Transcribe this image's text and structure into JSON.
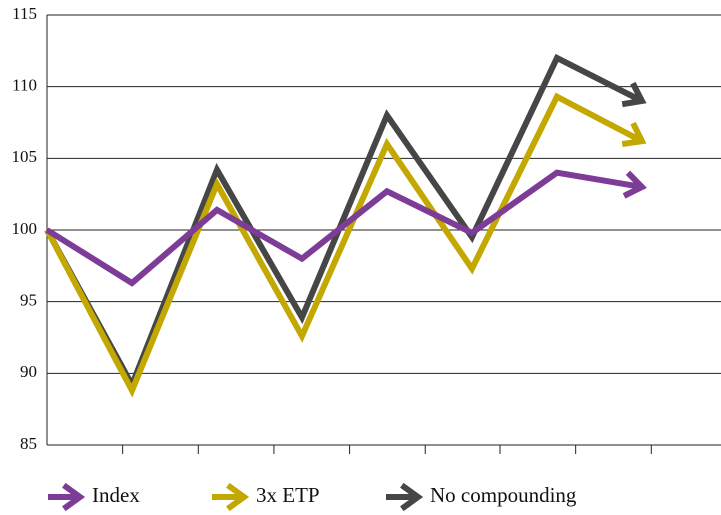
{
  "chart_data": {
    "type": "line",
    "x": [
      0,
      1,
      2,
      3,
      4,
      5,
      6,
      7
    ],
    "xlim": [
      0,
      7.93
    ],
    "xticks": [
      0.89,
      1.78,
      2.67,
      3.56,
      4.45,
      5.33,
      6.22,
      7.11
    ],
    "ylim": [
      85,
      115
    ],
    "yticks": [
      85,
      90,
      95,
      100,
      105,
      110,
      115
    ],
    "grid": true,
    "legend": "bottom",
    "series": [
      {
        "name": "No compounding",
        "color": "#464646",
        "values": [
          100,
          89.2,
          104.2,
          93.9,
          108,
          99.5,
          112,
          109
        ]
      },
      {
        "name": "3x ETP",
        "color": "#c2a800",
        "values": [
          100,
          88.8,
          103.2,
          92.6,
          106,
          97.3,
          109.3,
          106.2
        ]
      },
      {
        "name": "Index",
        "color": "#7d3c96",
        "values": [
          100,
          96.3,
          101.4,
          98,
          102.7,
          99.8,
          104,
          103
        ]
      }
    ]
  }
}
